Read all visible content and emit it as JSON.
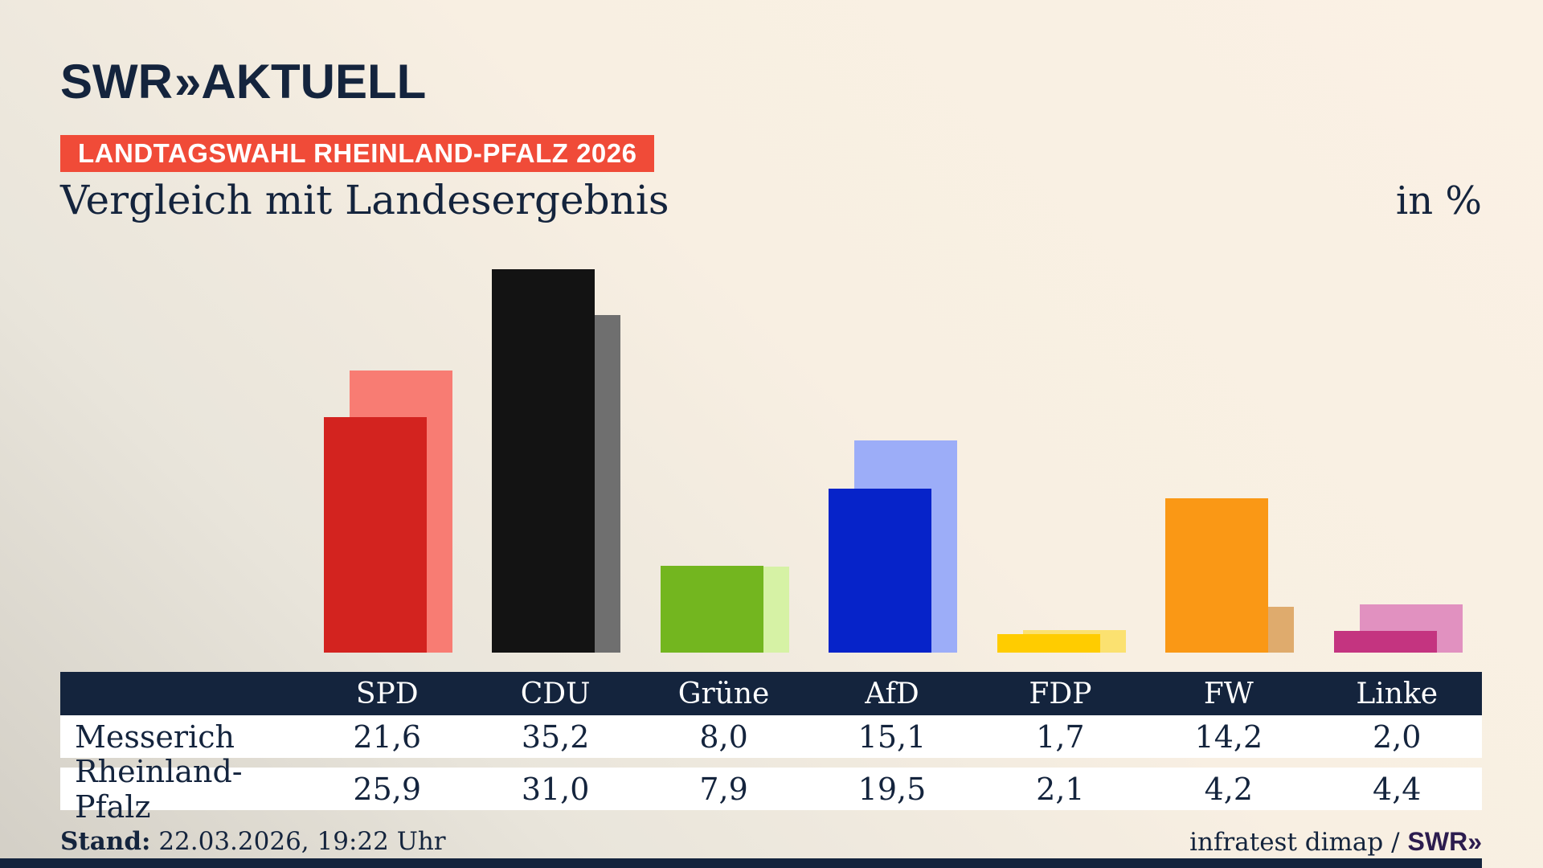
{
  "colors": {
    "navy": "#14243d",
    "badge_bg": "#f04b38",
    "badge_text": "#ffffff",
    "table_header_bg": "#14243d",
    "table_row_bg": "#ffffff",
    "footer_brand": "#2c1c4f",
    "background_light": "#faf1e4",
    "background_shade": "#d3cfc6"
  },
  "brand": {
    "logo_main": "SWR",
    "logo_chevron": "»",
    "logo_sub": "AKTUELL"
  },
  "header": {
    "badge": "LANDTAGSWAHL RHEINLAND-PFALZ 2026",
    "title": "Vergleich mit Landesergebnis",
    "unit": "in %"
  },
  "footer": {
    "stand_label": "Stand:",
    "stand_value": "22.03.2026, 19:22 Uhr",
    "source_text": "infratest dimap /",
    "source_brand": "SWR»"
  },
  "chart_data": {
    "type": "bar",
    "title": "Vergleich mit Landesergebnis",
    "unit": "in %",
    "categories": [
      "SPD",
      "CDU",
      "Grüne",
      "AfD",
      "FDP",
      "FW",
      "Linke"
    ],
    "series": [
      {
        "name": "Messerich",
        "role": "foreground",
        "values": [
          21.6,
          35.2,
          8.0,
          15.1,
          1.7,
          14.2,
          2.0
        ],
        "colors": [
          "#d3231f",
          "#131313",
          "#73b61f",
          "#0623c9",
          "#ffcc00",
          "#fa9815",
          "#c43480"
        ]
      },
      {
        "name": "Rheinland-Pfalz",
        "role": "background",
        "values": [
          25.9,
          31.0,
          7.9,
          19.5,
          2.1,
          4.2,
          4.4
        ],
        "colors": [
          "#f87c73",
          "#6f6f6f",
          "#d6f2a5",
          "#9cadf8",
          "#fbe170",
          "#dfab6d",
          "#e191c0"
        ]
      }
    ],
    "value_format": "german-comma-one-decimal",
    "grid": false,
    "y_axis_shown": false,
    "ymax_hint": 40,
    "legend_position": "table-below-chart"
  }
}
